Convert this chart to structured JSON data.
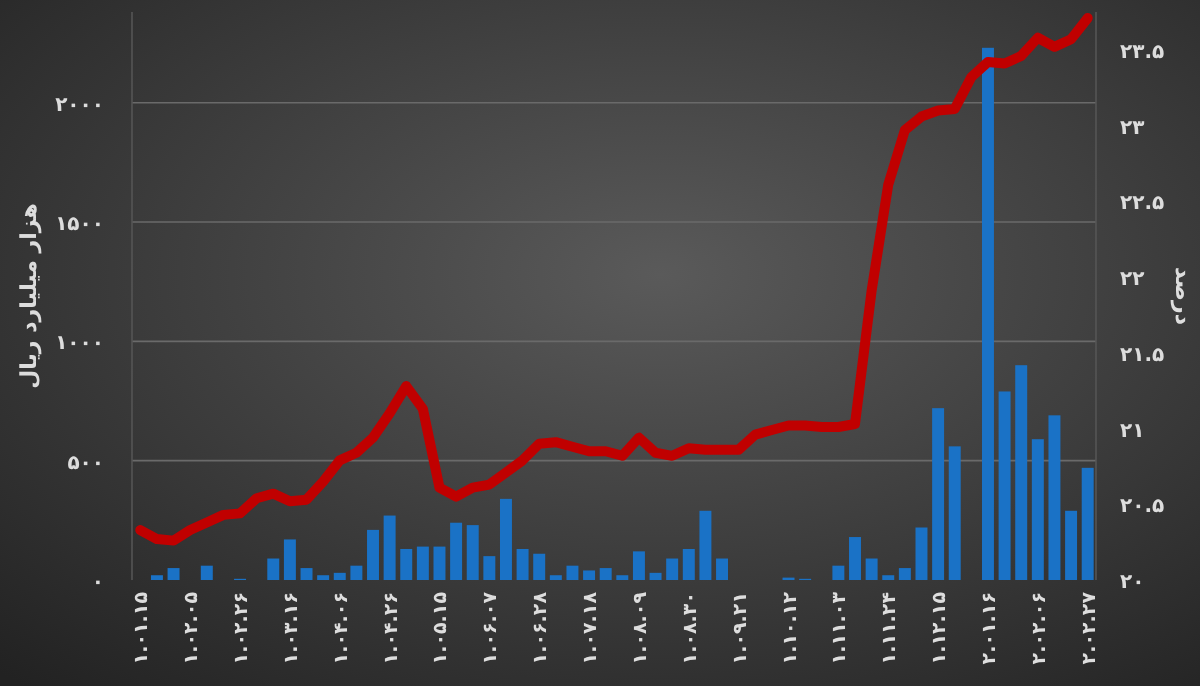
{
  "chart_data": {
    "type": "bar",
    "ylabel": "هزار میلیارد ریال",
    "y2label": "درصد",
    "categories": [
      "۱.۰۱.۱۵",
      null,
      null,
      "۱.۰۲.۰۵",
      null,
      null,
      "۱.۰۲.۲۶",
      null,
      null,
      "۱.۰۳.۱۶",
      null,
      null,
      "۱.۰۴.۰۶",
      null,
      null,
      "۱.۰۴.۲۶",
      null,
      null,
      "۱.۰۵.۱۵",
      null,
      null,
      "۱.۰۶.۰۷",
      null,
      null,
      "۱.۰۶.۲۸",
      null,
      null,
      "۱.۰۷.۱۸",
      null,
      null,
      "۱.۰۸.۰۹",
      null,
      null,
      "۱.۰۸.۳۰",
      null,
      null,
      "۱.۰۹.۲۱",
      null,
      null,
      "۱.۱۰.۱۲",
      null,
      null,
      "۱.۱۱.۰۳",
      null,
      null,
      "۱.۱۱.۲۴",
      null,
      null,
      "۱.۱۲.۱۵",
      null,
      null,
      "۲.۰۱.۱۶",
      null,
      null,
      "۲.۰۲.۰۶",
      null,
      null,
      "۲.۰۲.۲۷"
    ],
    "series": [
      {
        "color": "#1a72c6",
        "values": [
          null,
          20,
          50,
          null,
          60,
          null,
          5,
          null,
          90,
          170,
          50,
          20,
          30,
          60,
          210,
          270,
          130,
          140,
          140,
          240,
          230,
          100,
          340,
          130,
          110,
          20,
          60,
          40,
          50,
          20,
          120,
          30,
          90,
          130,
          290,
          90,
          null,
          null,
          null,
          10,
          5,
          null,
          60,
          180,
          90,
          20,
          50,
          220,
          720,
          560,
          null,
          2230,
          790,
          900,
          590,
          690,
          290,
          470
        ]
      },
      {
        "type": "line",
        "axis": "y2",
        "color": "#c00000",
        "values": [
          20.33,
          20.27,
          20.26,
          20.33,
          20.38,
          20.43,
          20.44,
          20.54,
          20.57,
          20.52,
          20.53,
          20.65,
          20.79,
          20.84,
          20.94,
          21.1,
          21.28,
          21.13,
          20.61,
          20.55,
          20.61,
          20.63,
          20.71,
          20.79,
          20.9,
          20.91,
          20.88,
          20.85,
          20.85,
          20.82,
          20.94,
          20.84,
          20.82,
          20.87,
          20.86,
          20.86,
          20.86,
          20.96,
          20.99,
          21.02,
          21.02,
          21.01,
          21.01,
          21.03,
          21.91,
          22.61,
          22.97,
          23.06,
          23.1,
          23.11,
          23.32,
          23.42,
          23.41,
          23.46,
          23.58,
          23.52,
          23.57,
          23.71
        ]
      }
    ],
    "ylim": [
      0,
      2380
    ],
    "yticks": [
      {
        "value": 0,
        "label": "۰"
      },
      {
        "value": 500,
        "label": "۵۰۰"
      },
      {
        "value": 1000,
        "label": "۱۰۰۰"
      },
      {
        "value": 1500,
        "label": "۱۵۰۰"
      },
      {
        "value": 2000,
        "label": "۲۰۰۰"
      }
    ],
    "y2lim": [
      20,
      23.75
    ],
    "y2ticks": [
      {
        "value": 20,
        "label": "۲۰"
      },
      {
        "value": 20.5,
        "label": "۲۰.۵"
      },
      {
        "value": 21,
        "label": "۲۱"
      },
      {
        "value": 21.5,
        "label": "۲۱.۵"
      },
      {
        "value": 22,
        "label": "۲۲"
      },
      {
        "value": 22.5,
        "label": "۲۲.۵"
      },
      {
        "value": 23,
        "label": "۲۳"
      },
      {
        "value": 23.5,
        "label": "۲۳.۵"
      }
    ],
    "grid": "y"
  }
}
